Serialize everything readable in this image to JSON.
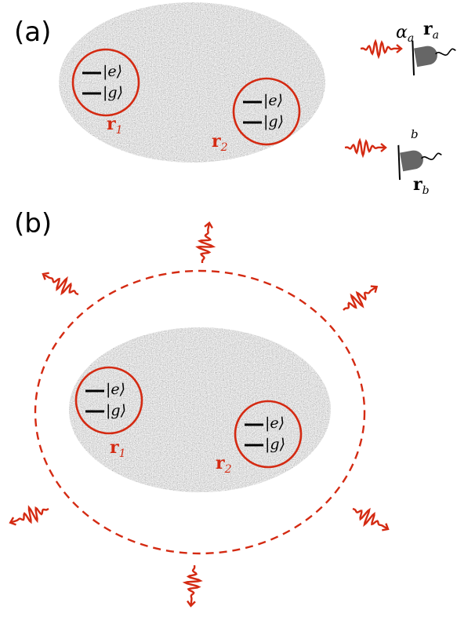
{
  "panels": [
    {
      "label": "(a)",
      "atoms": [
        {
          "excited": "|e⟩",
          "ground": "|g⟩",
          "position": {
            "symbol": "r",
            "subscript": "1"
          }
        },
        {
          "excited": "|e⟩",
          "ground": "|g⟩",
          "position": {
            "symbol": "r",
            "subscript": "2"
          }
        }
      ],
      "detectors": [
        {
          "mode": {
            "symbol": "α",
            "subscript": "a"
          },
          "position": {
            "symbol": "r",
            "subscript": "a"
          }
        },
        {
          "mode": {
            "symbol": "b"
          },
          "position": {
            "symbol": "r",
            "subscript": "b"
          }
        }
      ]
    },
    {
      "label": "(b)",
      "atoms": [
        {
          "excited": "|e⟩",
          "ground": "|g⟩",
          "position": {
            "symbol": "r",
            "subscript": "1"
          }
        },
        {
          "excited": "|e⟩",
          "ground": "|g⟩",
          "position": {
            "symbol": "r",
            "subscript": "2"
          }
        }
      ]
    }
  ]
}
